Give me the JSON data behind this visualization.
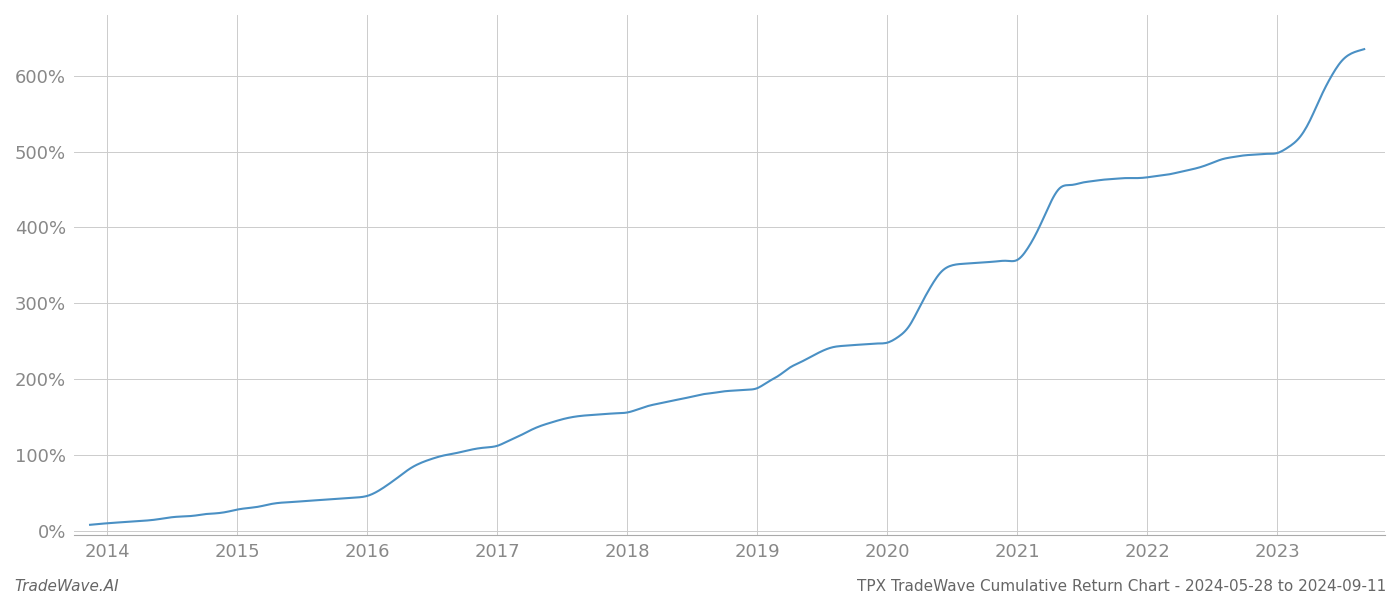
{
  "title": "TPX TradeWave Cumulative Return Chart - 2024-05-28 to 2024-09-11",
  "watermark": "TradeWave.AI",
  "line_color": "#4a90c4",
  "background_color": "#ffffff",
  "grid_color": "#cccccc",
  "x_years": [
    2013.87,
    2014.0,
    2014.08,
    2014.17,
    2014.25,
    2014.33,
    2014.42,
    2014.5,
    2014.58,
    2014.67,
    2014.75,
    2014.83,
    2014.92,
    2015.0,
    2015.08,
    2015.17,
    2015.25,
    2015.33,
    2015.42,
    2015.5,
    2015.58,
    2015.67,
    2015.75,
    2015.83,
    2015.92,
    2016.0,
    2016.08,
    2016.17,
    2016.25,
    2016.33,
    2016.42,
    2016.5,
    2016.58,
    2016.67,
    2016.75,
    2016.83,
    2016.92,
    2017.0,
    2017.08,
    2017.17,
    2017.25,
    2017.33,
    2017.42,
    2017.5,
    2017.58,
    2017.67,
    2017.75,
    2017.83,
    2017.92,
    2018.0,
    2018.08,
    2018.17,
    2018.25,
    2018.33,
    2018.42,
    2018.5,
    2018.58,
    2018.67,
    2018.75,
    2018.83,
    2018.92,
    2019.0,
    2019.08,
    2019.17,
    2019.25,
    2019.33,
    2019.42,
    2019.5,
    2019.58,
    2019.67,
    2019.75,
    2019.83,
    2019.92,
    2020.0,
    2020.08,
    2020.17,
    2020.25,
    2020.33,
    2020.42,
    2020.5,
    2020.58,
    2020.67,
    2020.75,
    2020.83,
    2020.92,
    2021.0,
    2021.08,
    2021.17,
    2021.25,
    2021.33,
    2021.42,
    2021.5,
    2021.58,
    2021.67,
    2021.75,
    2021.83,
    2021.92,
    2022.0,
    2022.08,
    2022.17,
    2022.25,
    2022.33,
    2022.42,
    2022.5,
    2022.58,
    2022.67,
    2022.75,
    2022.83,
    2022.92,
    2023.0,
    2023.08,
    2023.17,
    2023.25,
    2023.33,
    2023.42,
    2023.5,
    2023.58,
    2023.67
  ],
  "y_values": [
    0.08,
    0.1,
    0.11,
    0.12,
    0.13,
    0.14,
    0.16,
    0.18,
    0.19,
    0.2,
    0.22,
    0.23,
    0.25,
    0.28,
    0.3,
    0.32,
    0.35,
    0.37,
    0.38,
    0.39,
    0.4,
    0.41,
    0.42,
    0.43,
    0.44,
    0.46,
    0.52,
    0.62,
    0.72,
    0.82,
    0.9,
    0.95,
    0.99,
    1.02,
    1.05,
    1.08,
    1.1,
    1.12,
    1.18,
    1.25,
    1.32,
    1.38,
    1.43,
    1.47,
    1.5,
    1.52,
    1.53,
    1.54,
    1.55,
    1.56,
    1.6,
    1.65,
    1.68,
    1.71,
    1.74,
    1.77,
    1.8,
    1.82,
    1.84,
    1.85,
    1.86,
    1.88,
    1.96,
    2.05,
    2.15,
    2.22,
    2.3,
    2.37,
    2.42,
    2.44,
    2.45,
    2.46,
    2.47,
    2.48,
    2.55,
    2.7,
    2.95,
    3.2,
    3.42,
    3.5,
    3.52,
    3.53,
    3.54,
    3.55,
    3.56,
    3.57,
    3.72,
    4.0,
    4.3,
    4.52,
    4.56,
    4.59,
    4.61,
    4.63,
    4.64,
    4.65,
    4.65,
    4.66,
    4.68,
    4.7,
    4.73,
    4.76,
    4.8,
    4.85,
    4.9,
    4.93,
    4.95,
    4.96,
    4.97,
    4.98,
    5.05,
    5.18,
    5.4,
    5.7,
    6.0,
    6.2,
    6.3,
    6.35
  ],
  "xlim": [
    2013.75,
    2023.83
  ],
  "ylim": [
    -0.05,
    6.8
  ],
  "yticks": [
    0.0,
    1.0,
    2.0,
    3.0,
    4.0,
    5.0,
    6.0
  ],
  "ytick_labels": [
    "0%",
    "100%",
    "200%",
    "300%",
    "400%",
    "500%",
    "600%"
  ],
  "xticks": [
    2014,
    2015,
    2016,
    2017,
    2018,
    2019,
    2020,
    2021,
    2022,
    2023
  ],
  "xtick_labels": [
    "2014",
    "2015",
    "2016",
    "2017",
    "2018",
    "2019",
    "2020",
    "2021",
    "2022",
    "2023"
  ],
  "tick_color": "#888888",
  "tick_fontsize": 13,
  "footer_left": "TradeWave.AI",
  "footer_right": "TPX TradeWave Cumulative Return Chart - 2024-05-28 to 2024-09-11",
  "footer_fontsize": 11,
  "footer_color": "#666666"
}
